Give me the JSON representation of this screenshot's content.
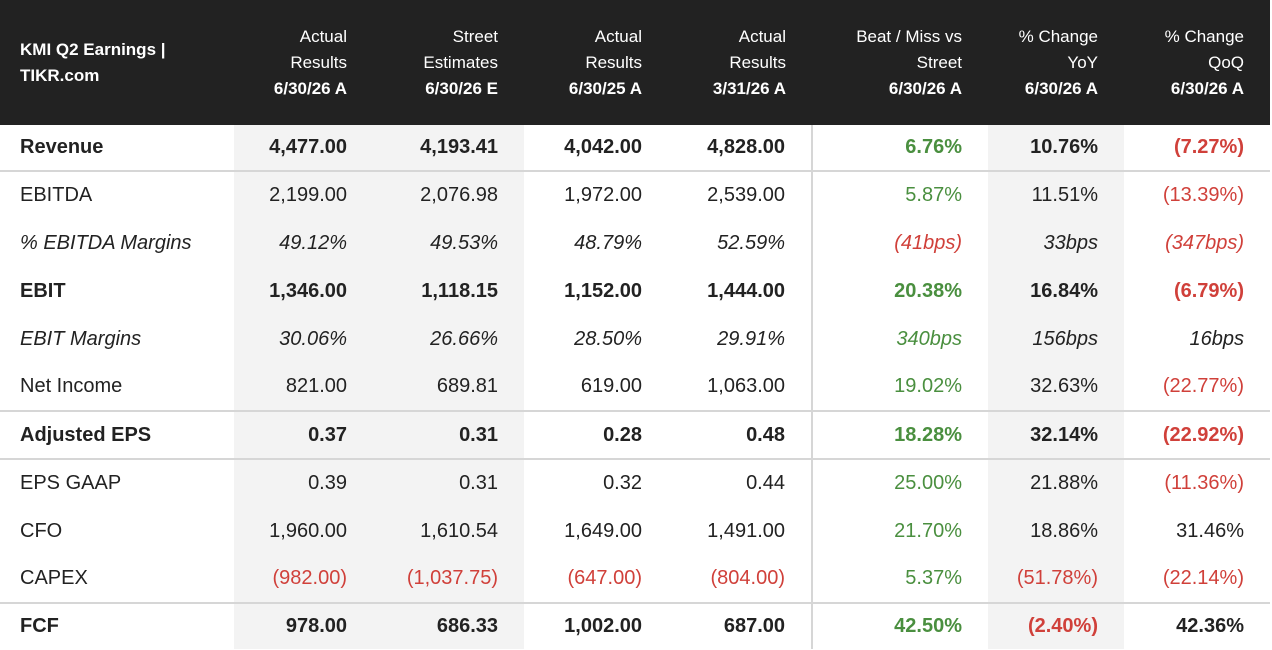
{
  "header": {
    "title": "KMI Q2 Earnings | TIKR.com",
    "columns": [
      {
        "line1": "Actual",
        "line2": "Results",
        "date": "6/30/26 A"
      },
      {
        "line1": "Street",
        "line2": "Estimates",
        "date": "6/30/26 E"
      },
      {
        "line1": "Actual",
        "line2": "Results",
        "date": "6/30/25 A"
      },
      {
        "line1": "Actual",
        "line2": "Results",
        "date": "3/31/26 A"
      },
      {
        "line1": "Beat / Miss vs",
        "line2": "Street",
        "date": "6/30/26 A"
      },
      {
        "line1": "% Change",
        "line2": "YoY",
        "date": "6/30/26 A"
      },
      {
        "line1": "% Change",
        "line2": "QoQ",
        "date": "6/30/26 A"
      }
    ]
  },
  "rows": [
    {
      "label": "Revenue",
      "v": [
        "4,477.00",
        "4,193.41",
        "4,042.00",
        "4,828.00",
        "6.76%",
        "10.76%",
        "(7.27%)"
      ]
    },
    {
      "label": "EBITDA",
      "v": [
        "2,199.00",
        "2,076.98",
        "1,972.00",
        "2,539.00",
        "5.87%",
        "11.51%",
        "(13.39%)"
      ]
    },
    {
      "label": "% EBITDA Margins",
      "v": [
        "49.12%",
        "49.53%",
        "48.79%",
        "52.59%",
        "(41bps)",
        "33bps",
        "(347bps)"
      ]
    },
    {
      "label": "EBIT",
      "v": [
        "1,346.00",
        "1,118.15",
        "1,152.00",
        "1,444.00",
        "20.38%",
        "16.84%",
        "(6.79%)"
      ]
    },
    {
      "label": "EBIT Margins",
      "v": [
        "30.06%",
        "26.66%",
        "28.50%",
        "29.91%",
        "340bps",
        "156bps",
        "16bps"
      ]
    },
    {
      "label": "Net Income",
      "v": [
        "821.00",
        "689.81",
        "619.00",
        "1,063.00",
        "19.02%",
        "32.63%",
        "(22.77%)"
      ]
    },
    {
      "label": "Adjusted EPS",
      "v": [
        "0.37",
        "0.31",
        "0.28",
        "0.48",
        "18.28%",
        "32.14%",
        "(22.92%)"
      ]
    },
    {
      "label": "EPS GAAP",
      "v": [
        "0.39",
        "0.31",
        "0.32",
        "0.44",
        "25.00%",
        "21.88%",
        "(11.36%)"
      ]
    },
    {
      "label": "CFO",
      "v": [
        "1,960.00",
        "1,610.54",
        "1,649.00",
        "1,491.00",
        "21.70%",
        "18.86%",
        "31.46%"
      ]
    },
    {
      "label": "CAPEX",
      "v": [
        "(982.00)",
        "(1,037.75)",
        "(647.00)",
        "(804.00)",
        "5.37%",
        "(51.78%)",
        "(22.14%)"
      ]
    },
    {
      "label": "FCF",
      "v": [
        "978.00",
        "686.33",
        "1,002.00",
        "687.00",
        "42.50%",
        "(2.40%)",
        "42.36%"
      ]
    }
  ],
  "colors": {
    "header_bg": "#222222",
    "positive": "#4a8f3f",
    "negative": "#d0403a",
    "shade": "#f3f3f3"
  }
}
